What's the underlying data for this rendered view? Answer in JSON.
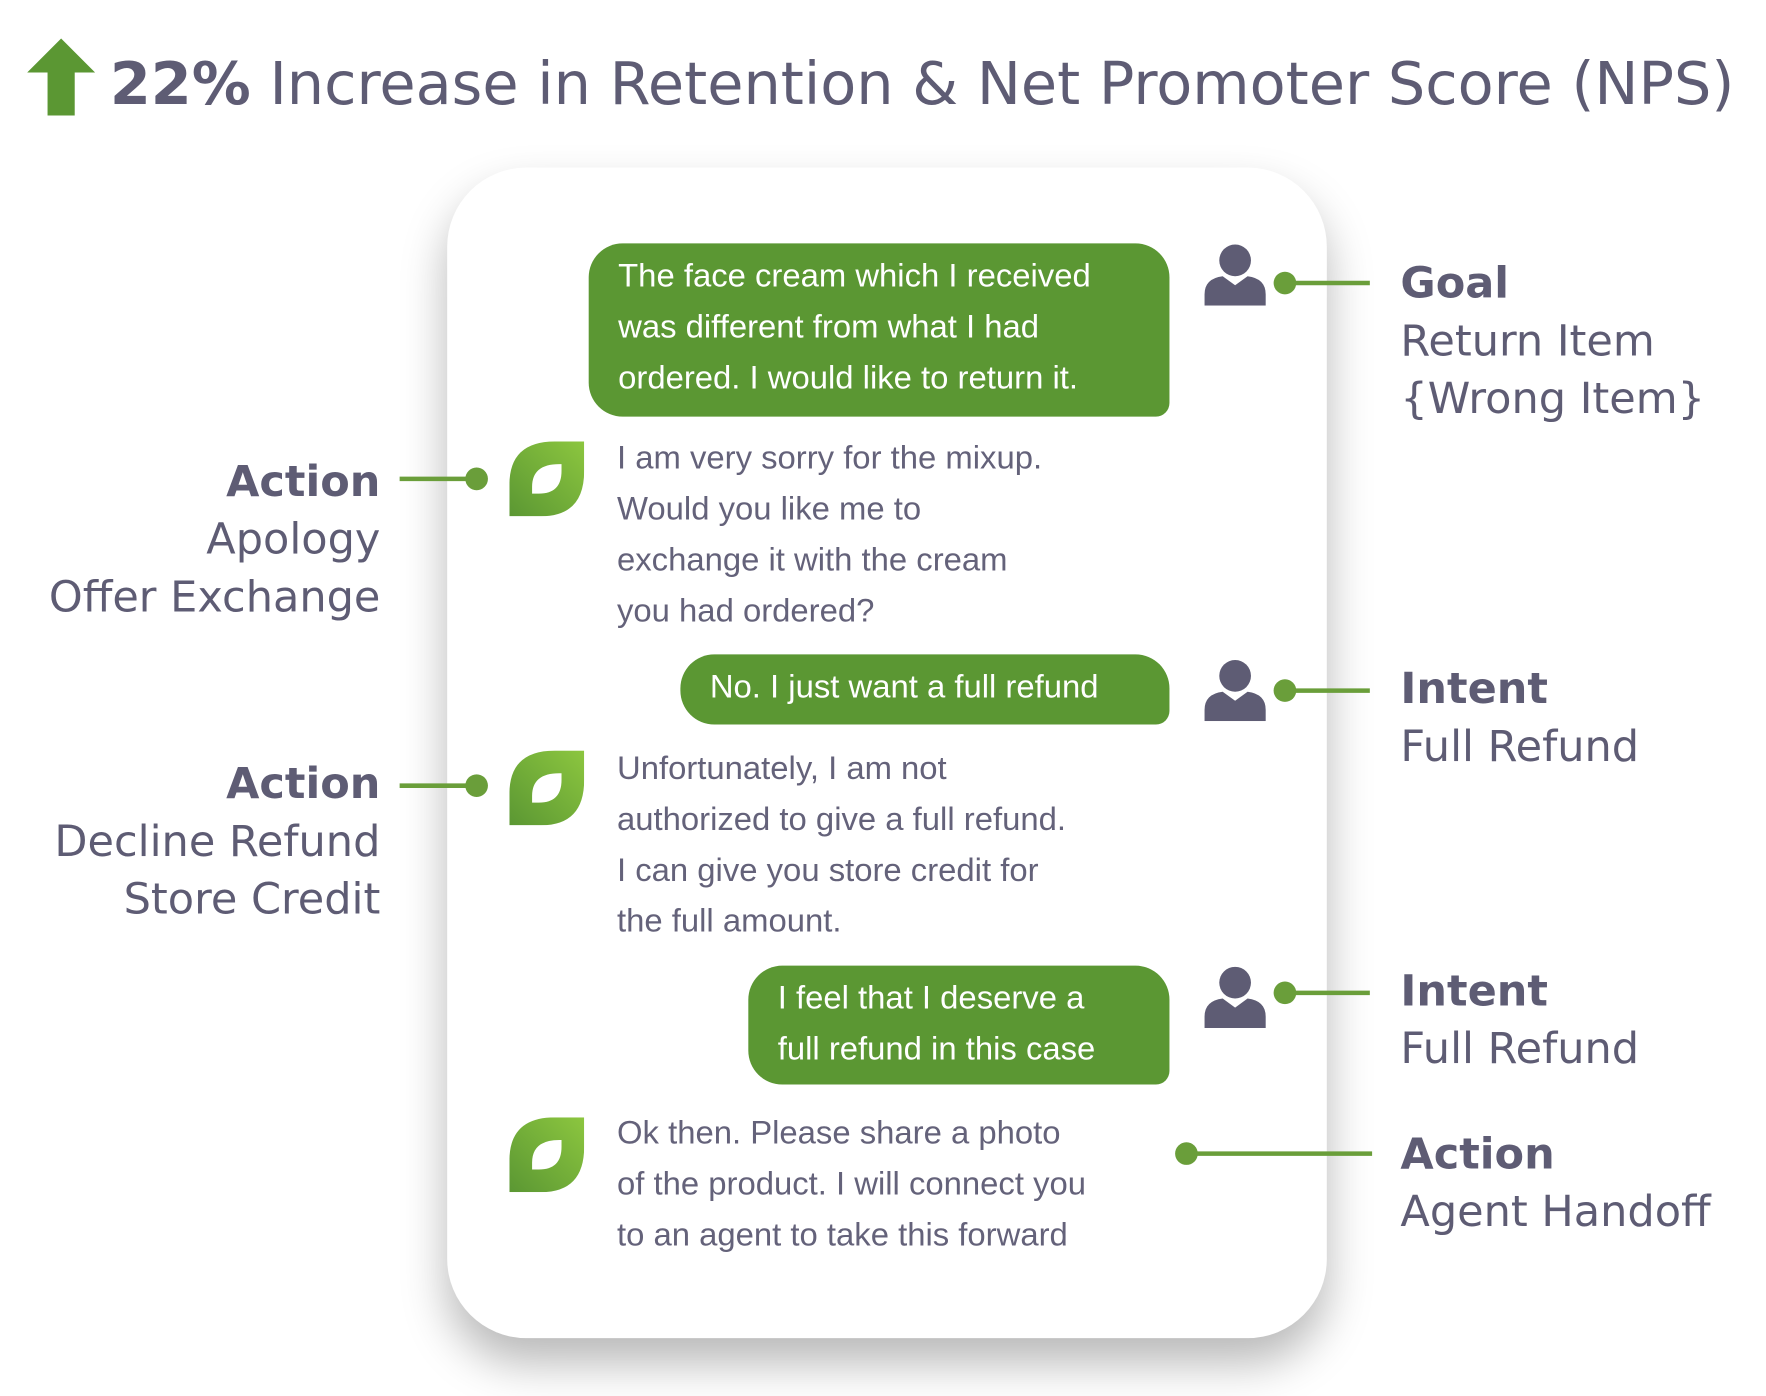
{
  "header": {
    "highlight": "22%",
    "title": "Increase in Retention & Net Promoter Score (NPS)"
  },
  "messages": [
    {
      "speaker": "user",
      "lines": [
        "The face cream which I received",
        "was different from what I had",
        "ordered. I would like to return it."
      ]
    },
    {
      "speaker": "bot",
      "lines": [
        "I am very sorry for the mixup.",
        "Would you like me to",
        "exchange it with the cream",
        "you had ordered?"
      ]
    },
    {
      "speaker": "user",
      "lines": [
        "No. I just want a full refund"
      ]
    },
    {
      "speaker": "bot",
      "lines": [
        "Unfortunately, I am not",
        "authorized to give a full refund.",
        "I can give you store credit for",
        "the full amount."
      ]
    },
    {
      "speaker": "user",
      "lines": [
        "I feel that I deserve a",
        "full refund in this case"
      ]
    },
    {
      "speaker": "bot",
      "lines": [
        "Ok then. Please share a photo",
        "of the product. I will connect you",
        "to an agent to take this forward"
      ]
    }
  ],
  "annotations": [
    {
      "label": "Goal",
      "lines": [
        "Return Item",
        "{Wrong Item}"
      ]
    },
    {
      "label": "Action",
      "lines": [
        "Apology",
        "Offer Exchange"
      ]
    },
    {
      "label": "Intent",
      "lines": [
        "Full Refund"
      ]
    },
    {
      "label": "Action",
      "lines": [
        "Decline Refund",
        "Store Credit"
      ]
    },
    {
      "label": "Intent",
      "lines": [
        "Full Refund"
      ]
    },
    {
      "label": "Action",
      "lines": [
        "Agent Handoff"
      ]
    }
  ]
}
